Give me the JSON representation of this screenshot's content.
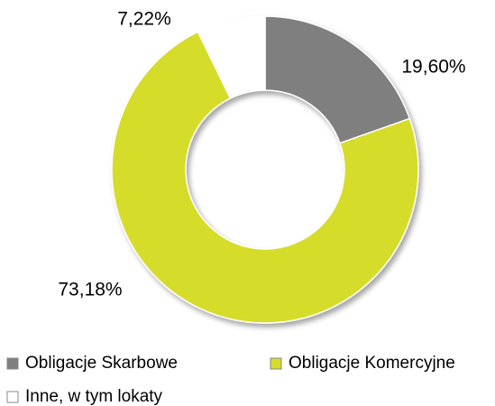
{
  "chart_data": {
    "type": "donut",
    "categories": [
      "Obligacje Skarbowe",
      "Obligacje Komercyjne",
      "Inne, w tym lokaty"
    ],
    "values": [
      19.6,
      73.18,
      7.22
    ],
    "value_labels": [
      "19,60%",
      "73,18%",
      "7,22%"
    ],
    "colors": [
      "#7f7f7f",
      "#d6dc2a",
      "#ffffff"
    ],
    "legend": "bottom"
  }
}
